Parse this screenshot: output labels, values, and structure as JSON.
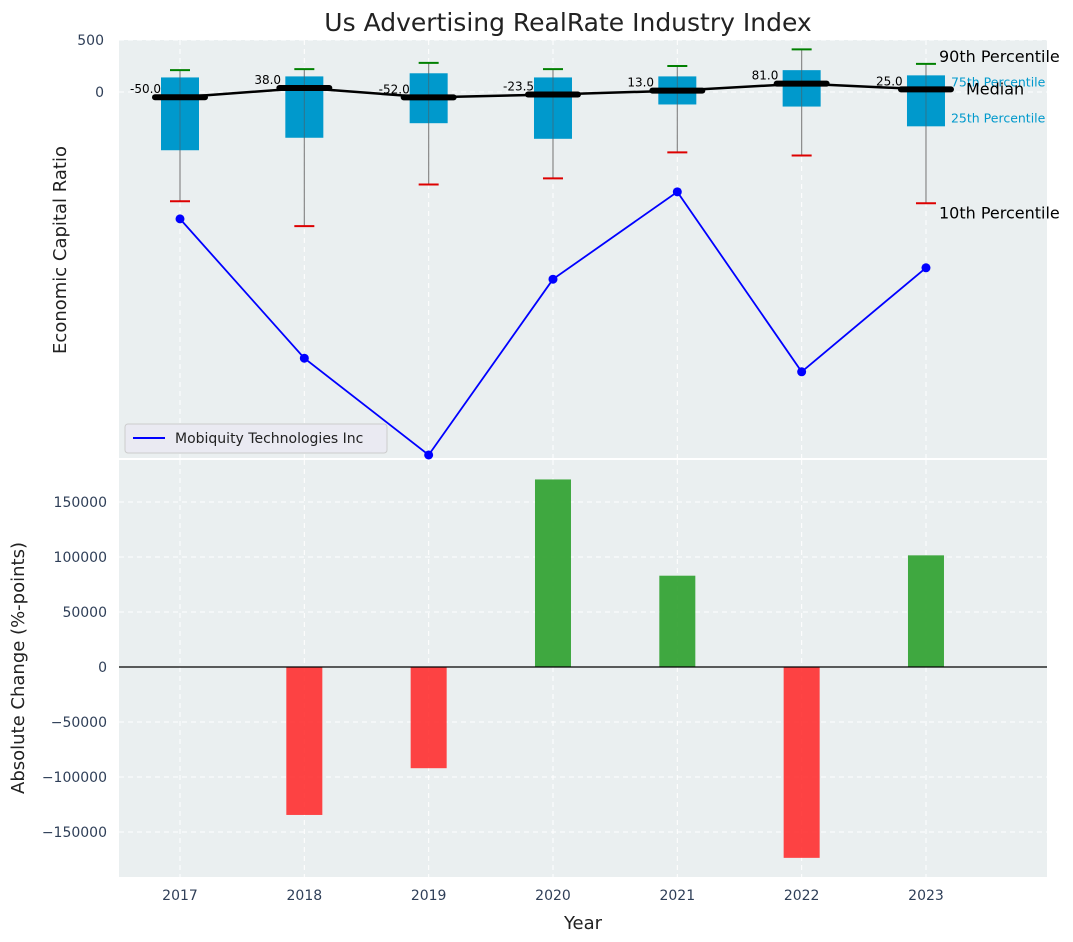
{
  "chart_data": [
    {
      "type": "box",
      "title": "Us Advertising RealRate Industry Index",
      "ylabel": "Economic Capital Ratio",
      "y_ticks": [
        0,
        500
      ],
      "categories": [
        "2017",
        "2018",
        "2019",
        "2020",
        "2021",
        "2022",
        "2023"
      ],
      "percentiles": {
        "p10": [
          -1050,
          -1290,
          -890,
          -830,
          -580,
          -610,
          -1070
        ],
        "p25": [
          -560,
          -440,
          -300,
          -450,
          -120,
          -140,
          -330
        ],
        "median": [
          -50.0,
          38.0,
          -52.0,
          -23.5,
          13.0,
          81.0,
          25.0
        ],
        "p75": [
          140,
          150,
          180,
          140,
          150,
          210,
          160
        ],
        "p90": [
          210,
          220,
          280,
          220,
          250,
          410,
          270
        ]
      },
      "median_labels": [
        "-50.0",
        "38.0",
        "-52.0",
        "-23.5",
        "13.0",
        "81.0",
        "25.0"
      ],
      "company_series": {
        "name": "Mobiquity Technologies Inc",
        "values": [
          -1220,
          -2560,
          -3490,
          -1800,
          -960,
          -2690,
          -1690
        ]
      },
      "annotations": {
        "p90": "90th Percentile",
        "p75": "75th Percentile",
        "median": "Median",
        "p25": "25th Percentile",
        "p10": "10th Percentile"
      },
      "ylim": [
        -3500,
        500
      ],
      "grid": true,
      "legend_position": "lower-left"
    },
    {
      "type": "bar",
      "categories": [
        "2017",
        "2018",
        "2019",
        "2020",
        "2021",
        "2022",
        "2023"
      ],
      "values": [
        null,
        -134500,
        -92000,
        170500,
        83000,
        -173500,
        101500
      ],
      "xlabel": "Year",
      "ylabel": "Absolute Change (%-points)",
      "y_ticks": [
        -150000,
        -100000,
        -50000,
        0,
        50000,
        100000,
        150000
      ],
      "ylim": [
        -190000,
        190000
      ],
      "positive_color": "#2ca02c",
      "negative_color": "#ff2a2a",
      "grid": true
    }
  ],
  "colors": {
    "box_fill": "#0099cc",
    "median_line": "#000000",
    "p90_whisker": "#008000",
    "p10_whisker": "#dd0000",
    "company_line": "#0000ff",
    "plot_bg": "#eaeff0"
  }
}
